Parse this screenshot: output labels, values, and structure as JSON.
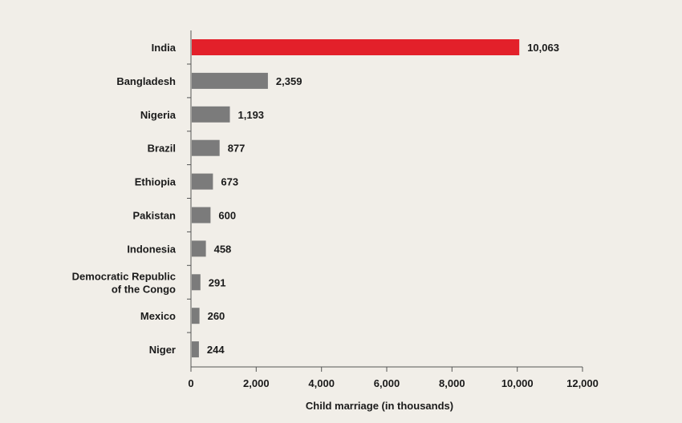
{
  "chart_data": {
    "type": "bar",
    "orientation": "horizontal",
    "categories": [
      "India",
      "Bangladesh",
      "Nigeria",
      "Brazil",
      "Ethiopia",
      "Pakistan",
      "Indonesia",
      "Democratic Republic of the Congo",
      "Mexico",
      "Niger"
    ],
    "category_lines": [
      [
        "India"
      ],
      [
        "Bangladesh"
      ],
      [
        "Nigeria"
      ],
      [
        "Brazil"
      ],
      [
        "Ethiopia"
      ],
      [
        "Pakistan"
      ],
      [
        "Indonesia"
      ],
      [
        "Democratic Republic",
        "of the Congo"
      ],
      [
        "Mexico"
      ],
      [
        "Niger"
      ]
    ],
    "values": [
      10063,
      2359,
      1193,
      877,
      673,
      600,
      458,
      291,
      260,
      244
    ],
    "value_labels": [
      "10,063",
      "2,359",
      "1,193",
      "877",
      "673",
      "600",
      "458",
      "291",
      "260",
      "244"
    ],
    "title": "",
    "xlabel": "Child marriage (in thousands)",
    "ylabel": "",
    "xlim": [
      0,
      12000
    ],
    "x_ticks": [
      0,
      2000,
      4000,
      6000,
      8000,
      10000,
      12000
    ],
    "x_tick_labels": [
      "0",
      "2,000",
      "4,000",
      "6,000",
      "8,000",
      "10,000",
      "12,000"
    ],
    "grid": false,
    "legend": "none",
    "colors": {
      "highlight": "#e3202a",
      "default": "#7b7b7b",
      "axis": "#555555",
      "text": "#1a1a1a",
      "background": "#f1eee8"
    },
    "highlight_index": 0
  }
}
